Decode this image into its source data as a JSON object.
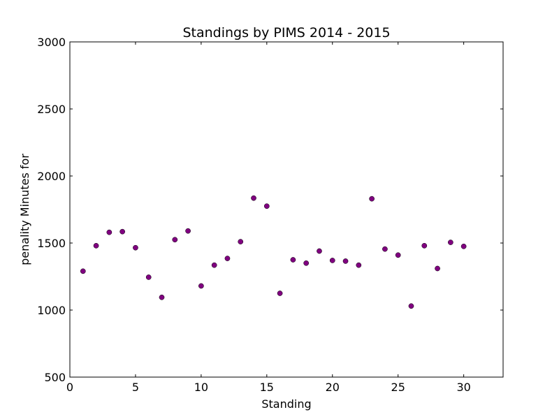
{
  "chart_data": {
    "type": "scatter",
    "title": "Standings by PIMS 2014 - 2015",
    "xlabel": "Standing",
    "ylabel": "penality Minutes for",
    "xlim": [
      0,
      33
    ],
    "ylim": [
      500,
      3000
    ],
    "xticks": [
      0,
      5,
      10,
      15,
      20,
      25,
      30
    ],
    "yticks": [
      500,
      1000,
      1500,
      2000,
      2500,
      3000
    ],
    "grid": false,
    "marker_color": "#800080",
    "points": [
      {
        "x": 1,
        "y": 1290
      },
      {
        "x": 2,
        "y": 1480
      },
      {
        "x": 3,
        "y": 1580
      },
      {
        "x": 4,
        "y": 1585
      },
      {
        "x": 5,
        "y": 1465
      },
      {
        "x": 6,
        "y": 1245
      },
      {
        "x": 7,
        "y": 1095
      },
      {
        "x": 8,
        "y": 1525
      },
      {
        "x": 9,
        "y": 1590
      },
      {
        "x": 10,
        "y": 1180
      },
      {
        "x": 11,
        "y": 1335
      },
      {
        "x": 12,
        "y": 1385
      },
      {
        "x": 13,
        "y": 1510
      },
      {
        "x": 14,
        "y": 1835
      },
      {
        "x": 15,
        "y": 1775
      },
      {
        "x": 16,
        "y": 1125
      },
      {
        "x": 17,
        "y": 1375
      },
      {
        "x": 18,
        "y": 1350
      },
      {
        "x": 19,
        "y": 1440
      },
      {
        "x": 20,
        "y": 1370
      },
      {
        "x": 21,
        "y": 1365
      },
      {
        "x": 22,
        "y": 1335
      },
      {
        "x": 23,
        "y": 1830
      },
      {
        "x": 24,
        "y": 1455
      },
      {
        "x": 25,
        "y": 1410
      },
      {
        "x": 26,
        "y": 1030
      },
      {
        "x": 27,
        "y": 1480
      },
      {
        "x": 28,
        "y": 1310
      },
      {
        "x": 29,
        "y": 1505
      },
      {
        "x": 30,
        "y": 1475
      }
    ]
  }
}
